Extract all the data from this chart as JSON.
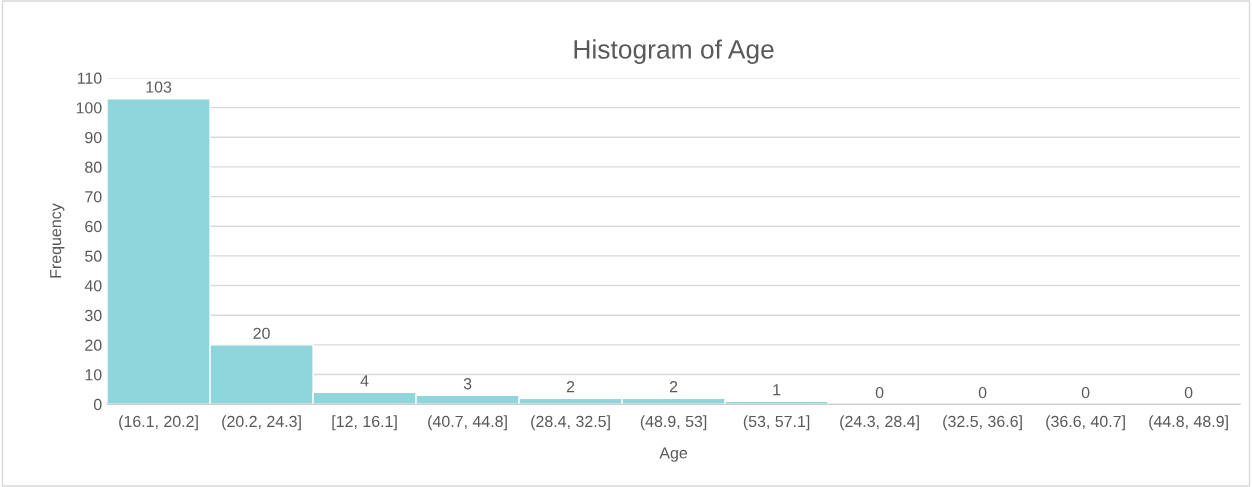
{
  "chart_data": {
    "type": "bar",
    "title": "Histogram of Age",
    "xlabel": "Age",
    "ylabel": "Frequency",
    "categories": [
      "(16.1, 20.2]",
      "(20.2, 24.3]",
      "[12, 16.1]",
      "(40.7, 44.8]",
      "(28.4, 32.5]",
      "(48.9, 53]",
      "(53, 57.1]",
      "(24.3, 28.4]",
      "(32.5, 36.6]",
      "(36.6, 40.7]",
      "(44.8, 48.9]"
    ],
    "values": [
      103,
      20,
      4,
      3,
      2,
      2,
      1,
      0,
      0,
      0,
      0
    ],
    "color": "#8fd6dc",
    "data_labels": true,
    "grid": "y",
    "ylim": [
      0,
      110
    ],
    "yticks": [
      0,
      10,
      20,
      30,
      40,
      50,
      60,
      70,
      80,
      90,
      100,
      110
    ]
  }
}
